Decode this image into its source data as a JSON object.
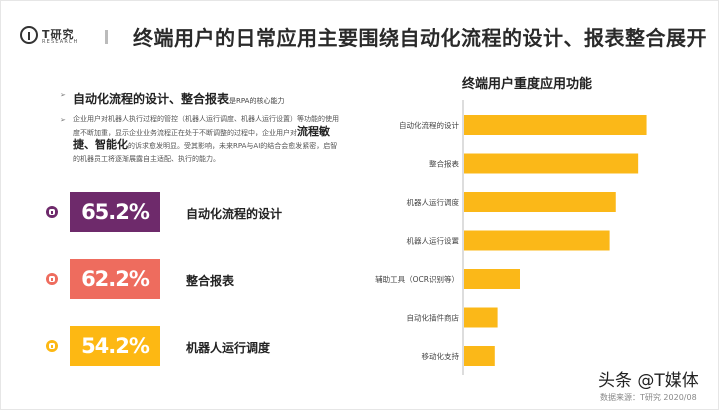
{
  "colors": {
    "purple": "#6e2a6b",
    "coral": "#ee6c5e",
    "gold": "#fdb813",
    "bar": "#fbb818"
  },
  "logo": {
    "name": "T研究",
    "sub": "RESEARCH"
  },
  "title": "终端用户的日常应用主要围绕自动化流程的设计、报表整合展开",
  "bullets": {
    "b1_head": "自动化流程的设计、整合报表",
    "b1_tail": "是RPA的核心能力",
    "b2_part1": "企业用户对机器人执行过程的管控（机器人运行调度、机器人运行设置）等功能的使用度不断加重，显示企业业务流程正在处于不断调整的过程中，企业用户对",
    "b2_strong": "流程敏捷、智能化",
    "b2_part2": "的诉求愈发明显。受其影响，未来RPA与AI的结合会愈发紧密，启智的机器员工将逐渐展露自主适配、执行的能力。"
  },
  "stats": [
    {
      "value": "65.2%",
      "label": "自动化流程的设计"
    },
    {
      "value": "62.2%",
      "label": "整合报表"
    },
    {
      "value": "54.2%",
      "label": "机器人运行调度"
    }
  ],
  "chart_data": {
    "type": "bar",
    "orientation": "horizontal",
    "title": "终端用户重度应用功能",
    "categories": [
      "自动化流程的设计",
      "整合报表",
      "机器人运行调度",
      "机器人运行设置",
      "辅助工具（OCR识别等）",
      "自动化插件商店",
      "移动化支持"
    ],
    "values": [
      65.2,
      62.2,
      54.2,
      52.0,
      20.0,
      12.0,
      11.0
    ],
    "xlim": [
      0,
      70
    ],
    "grid": false,
    "legend": "none"
  },
  "source": "数据来源：T研究 2020/08",
  "watermark": "头条 @T媒体"
}
